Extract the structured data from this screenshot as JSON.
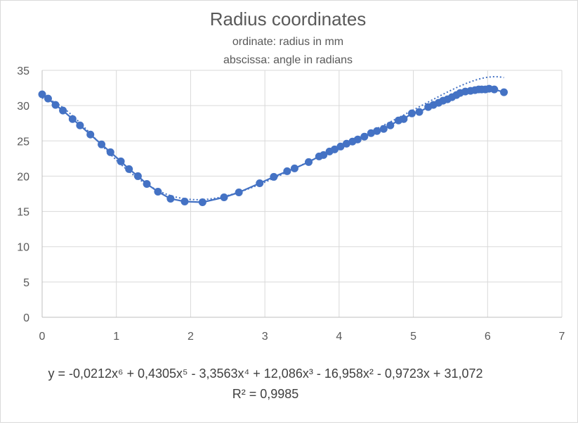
{
  "chart_data": {
    "type": "scatter",
    "title": "Radius coordinates",
    "subtitle_lines": [
      "ordinate: radius in mm",
      "abscissa: angle in radians"
    ],
    "xlim": [
      0,
      7
    ],
    "ylim": [
      0,
      35
    ],
    "x_ticks": [
      0,
      1,
      2,
      3,
      4,
      5,
      6,
      7
    ],
    "y_ticks": [
      0,
      5,
      10,
      15,
      20,
      25,
      30,
      35
    ],
    "grid": true,
    "series": [
      {
        "color": "#4472c4",
        "points": [
          [
            0.0,
            31.6
          ],
          [
            0.08,
            31.0
          ],
          [
            0.18,
            30.1
          ],
          [
            0.28,
            29.3
          ],
          [
            0.41,
            28.1
          ],
          [
            0.51,
            27.2
          ],
          [
            0.65,
            25.9
          ],
          [
            0.8,
            24.5
          ],
          [
            0.92,
            23.4
          ],
          [
            1.06,
            22.1
          ],
          [
            1.17,
            21.0
          ],
          [
            1.29,
            20.0
          ],
          [
            1.41,
            18.9
          ],
          [
            1.56,
            17.8
          ],
          [
            1.73,
            16.8
          ],
          [
            1.92,
            16.4
          ],
          [
            2.16,
            16.3
          ],
          [
            2.45,
            17.0
          ],
          [
            2.65,
            17.7
          ],
          [
            2.93,
            19.0
          ],
          [
            3.12,
            19.9
          ],
          [
            3.3,
            20.7
          ],
          [
            3.4,
            21.1
          ],
          [
            3.59,
            22.0
          ],
          [
            3.73,
            22.8
          ],
          [
            3.79,
            23.0
          ],
          [
            3.87,
            23.5
          ],
          [
            3.94,
            23.8
          ],
          [
            4.02,
            24.2
          ],
          [
            4.1,
            24.6
          ],
          [
            4.18,
            24.9
          ],
          [
            4.25,
            25.2
          ],
          [
            4.34,
            25.6
          ],
          [
            4.43,
            26.1
          ],
          [
            4.51,
            26.4
          ],
          [
            4.6,
            26.7
          ],
          [
            4.69,
            27.2
          ],
          [
            4.8,
            27.9
          ],
          [
            4.87,
            28.1
          ],
          [
            4.98,
            28.9
          ],
          [
            5.08,
            29.1
          ],
          [
            5.2,
            29.8
          ],
          [
            5.27,
            30.1
          ],
          [
            5.34,
            30.4
          ],
          [
            5.4,
            30.7
          ],
          [
            5.46,
            30.9
          ],
          [
            5.52,
            31.2
          ],
          [
            5.58,
            31.5
          ],
          [
            5.63,
            31.8
          ],
          [
            5.7,
            32.0
          ],
          [
            5.77,
            32.1
          ],
          [
            5.83,
            32.2
          ],
          [
            5.88,
            32.3
          ],
          [
            5.92,
            32.3
          ],
          [
            5.97,
            32.3
          ],
          [
            6.02,
            32.4
          ],
          [
            6.09,
            32.3
          ],
          [
            6.22,
            31.9
          ]
        ]
      }
    ],
    "trendline": {
      "type": "polynomial",
      "order": 6,
      "style": "dotted",
      "coefficients_high_to_low": [
        -0.0212,
        0.4305,
        -3.3563,
        12.086,
        -16.958,
        -0.9723,
        31.072
      ],
      "equation_text": "y = -0,0212x⁶ + 0,4305x⁵ - 3,3563x⁴ + 12,086x³ - 16,958x² - 0,9723x + 31,072",
      "r_squared_text": "R² = 0,9985"
    }
  }
}
